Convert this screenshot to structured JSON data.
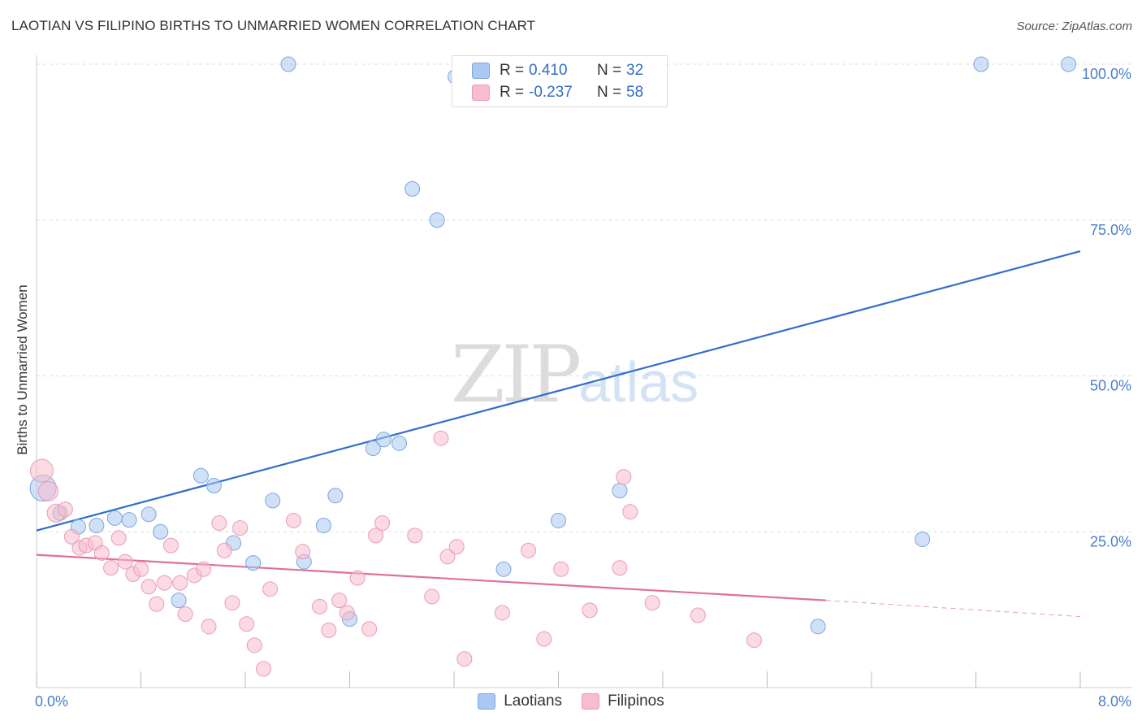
{
  "title": "LAOTIAN VS FILIPINO BIRTHS TO UNMARRIED WOMEN CORRELATION CHART",
  "source": "Source: ZipAtlas.com",
  "watermark": {
    "zip": "ZIP",
    "atlas": "atlas"
  },
  "legend": {
    "rows": [
      {
        "r_label": "R =",
        "r_value": "0.410",
        "n_label": "N =",
        "n_value": "32",
        "color": "#aac8f0"
      },
      {
        "r_label": "R =",
        "r_value": "-0.237",
        "n_label": "N =",
        "n_value": "58",
        "color": "#f7bccd"
      }
    ]
  },
  "bottom_legend": [
    {
      "label": "Laotians",
      "color": "#aac8f0"
    },
    {
      "label": "Filipinos",
      "color": "#f7bccd"
    }
  ],
  "chart_data": {
    "type": "scatter",
    "title": "LAOTIAN VS FILIPINO BIRTHS TO UNMARRIED WOMEN CORRELATION CHART",
    "xlabel": "",
    "ylabel": "Births to Unmarried Women",
    "xlim": [
      0,
      8
    ],
    "ylim": [
      0,
      100
    ],
    "x_tick_labels": [
      "0.0%",
      "8.0%"
    ],
    "y_ticks": [
      25,
      50,
      75,
      100
    ],
    "y_tick_labels": [
      "25.0%",
      "50.0%",
      "75.0%",
      "100.0%"
    ],
    "grid": true,
    "legend_position": "top-center",
    "series": [
      {
        "name": "Laotians",
        "color": "#aac8f0",
        "stroke": "#7aa6df",
        "line_color": "#2f6ecb",
        "trend": {
          "x0": 0,
          "y0": 25.2,
          "x1": 8,
          "y1": 70.0
        },
        "points": [
          [
            0.05,
            32.0,
            16
          ],
          [
            0.18,
            28.0,
            9
          ],
          [
            0.32,
            25.8,
            9
          ],
          [
            0.46,
            26.0,
            9
          ],
          [
            0.6,
            27.2,
            9
          ],
          [
            0.71,
            26.9,
            9
          ],
          [
            0.86,
            27.8,
            9
          ],
          [
            0.95,
            25.0,
            9
          ],
          [
            1.09,
            14.0,
            9
          ],
          [
            1.26,
            34.0,
            9
          ],
          [
            1.36,
            32.4,
            9
          ],
          [
            1.51,
            23.2,
            9
          ],
          [
            1.66,
            20.0,
            9
          ],
          [
            1.81,
            30.0,
            9
          ],
          [
            2.05,
            20.2,
            9
          ],
          [
            1.93,
            100.0,
            9
          ],
          [
            2.2,
            26.0,
            9
          ],
          [
            2.29,
            30.8,
            9
          ],
          [
            2.4,
            11.0,
            9
          ],
          [
            2.58,
            38.4,
            9
          ],
          [
            2.66,
            39.8,
            9
          ],
          [
            2.78,
            39.2,
            9
          ],
          [
            2.88,
            80.0,
            9
          ],
          [
            3.07,
            75.0,
            9
          ],
          [
            3.21,
            98.0,
            9
          ],
          [
            3.58,
            19.0,
            9
          ],
          [
            4.0,
            26.8,
            9
          ],
          [
            4.47,
            31.6,
            9
          ],
          [
            5.99,
            9.8,
            9
          ],
          [
            6.79,
            23.8,
            9
          ],
          [
            7.24,
            100.0,
            9
          ],
          [
            7.91,
            100.0,
            9
          ]
        ]
      },
      {
        "name": "Filipinos",
        "color": "#f7bccd",
        "stroke": "#ec9ab4",
        "line_color": "#e06f9a",
        "trend": {
          "x0": 0,
          "y0": 21.3,
          "x1": 6.05,
          "y1": 14.0
        },
        "trend_dashed": {
          "x0": 6.05,
          "y0": 14.0,
          "x1": 8,
          "y1": 11.4
        },
        "points": [
          [
            0.04,
            34.8,
            14
          ],
          [
            0.09,
            31.5,
            12
          ],
          [
            0.15,
            28.0,
            11
          ],
          [
            0.22,
            28.6,
            9
          ],
          [
            0.27,
            24.2,
            9
          ],
          [
            0.33,
            22.4,
            9
          ],
          [
            0.38,
            22.8,
            9
          ],
          [
            0.45,
            23.2,
            9
          ],
          [
            0.5,
            21.6,
            9
          ],
          [
            0.57,
            19.2,
            9
          ],
          [
            0.63,
            24.0,
            9
          ],
          [
            0.68,
            20.2,
            9
          ],
          [
            0.74,
            18.2,
            9
          ],
          [
            0.8,
            19.0,
            9
          ],
          [
            0.86,
            16.2,
            9
          ],
          [
            0.92,
            13.4,
            9
          ],
          [
            0.98,
            16.8,
            9
          ],
          [
            1.03,
            22.8,
            9
          ],
          [
            1.1,
            16.8,
            9
          ],
          [
            1.14,
            11.8,
            9
          ],
          [
            1.21,
            18.0,
            9
          ],
          [
            1.28,
            19.0,
            9
          ],
          [
            1.32,
            9.8,
            9
          ],
          [
            1.4,
            26.4,
            9
          ],
          [
            1.44,
            22.0,
            9
          ],
          [
            1.5,
            13.6,
            9
          ],
          [
            1.56,
            25.6,
            9
          ],
          [
            1.61,
            10.2,
            9
          ],
          [
            1.67,
            6.8,
            9
          ],
          [
            1.74,
            3.0,
            9
          ],
          [
            1.79,
            15.8,
            9
          ],
          [
            1.97,
            26.8,
            9
          ],
          [
            2.04,
            21.8,
            9
          ],
          [
            2.17,
            13.0,
            9
          ],
          [
            2.24,
            9.2,
            9
          ],
          [
            2.32,
            14.0,
            9
          ],
          [
            2.38,
            12.0,
            9
          ],
          [
            2.46,
            17.6,
            9
          ],
          [
            2.55,
            9.4,
            9
          ],
          [
            2.6,
            24.4,
            9
          ],
          [
            2.65,
            26.4,
            9
          ],
          [
            2.9,
            24.4,
            9
          ],
          [
            3.03,
            14.6,
            9
          ],
          [
            3.1,
            40.0,
            9
          ],
          [
            3.15,
            21.0,
            9
          ],
          [
            3.22,
            22.6,
            9
          ],
          [
            3.28,
            4.6,
            9
          ],
          [
            3.57,
            12.0,
            9
          ],
          [
            3.77,
            22.0,
            9
          ],
          [
            3.89,
            7.8,
            9
          ],
          [
            4.02,
            19.0,
            9
          ],
          [
            4.24,
            12.4,
            9
          ],
          [
            4.47,
            19.2,
            9
          ],
          [
            4.5,
            33.8,
            9
          ],
          [
            4.55,
            28.2,
            9
          ],
          [
            4.72,
            13.6,
            9
          ],
          [
            5.07,
            11.6,
            9
          ],
          [
            5.5,
            7.6,
            9
          ]
        ]
      }
    ]
  }
}
